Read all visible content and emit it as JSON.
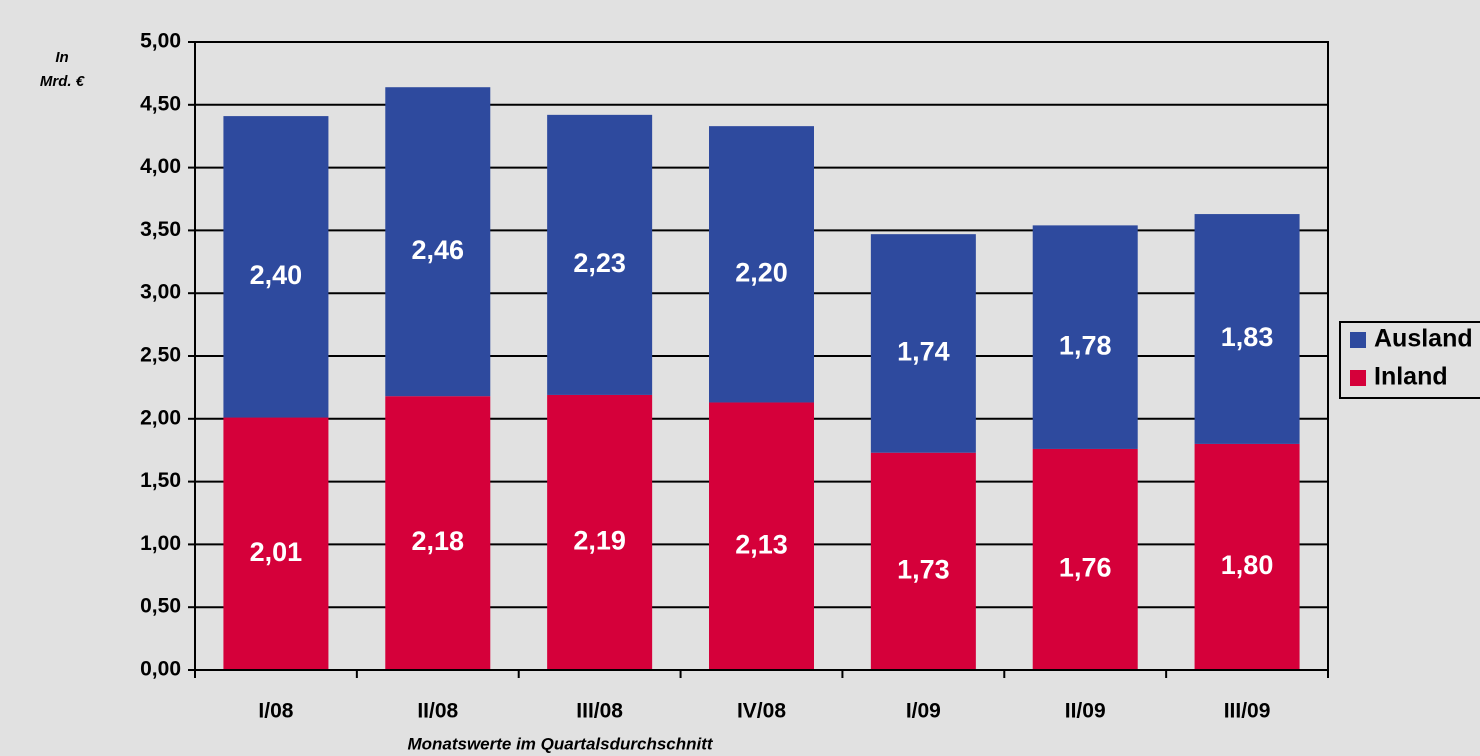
{
  "chart_data": {
    "type": "stacked_bar",
    "y_label": [
      "In",
      "Mrd. €"
    ],
    "x_label": "Monatswerte im Quartalsdurchschnitt",
    "categories": [
      "I/08",
      "II/08",
      "III/08",
      "IV/08",
      "I/09",
      "II/09",
      "III/09"
    ],
    "series": [
      {
        "name": "Inland",
        "color": "#d5003a",
        "values": [
          2.01,
          2.18,
          2.19,
          2.13,
          1.73,
          1.76,
          1.8
        ],
        "value_labels": [
          "2,01",
          "2,18",
          "2,19",
          "2,13",
          "1,73",
          "1,76",
          "1,80"
        ]
      },
      {
        "name": "Ausland",
        "color": "#2e4a9e",
        "values": [
          2.4,
          2.46,
          2.23,
          2.2,
          1.74,
          1.78,
          1.83
        ],
        "value_labels": [
          "2,40",
          "2,46",
          "2,23",
          "2,20",
          "1,74",
          "1,78",
          "1,83"
        ]
      }
    ],
    "ylim": [
      0,
      5
    ],
    "yticks": [
      {
        "value": 0,
        "label": "0,00"
      },
      {
        "value": 0.5,
        "label": "0,50"
      },
      {
        "value": 1,
        "label": "1,00"
      },
      {
        "value": 1.5,
        "label": "1,50"
      },
      {
        "value": 2,
        "label": "2,00"
      },
      {
        "value": 2.5,
        "label": "2,50"
      },
      {
        "value": 3,
        "label": "3,00"
      },
      {
        "value": 3.5,
        "label": "3,50"
      },
      {
        "value": 4,
        "label": "4,00"
      },
      {
        "value": 4.5,
        "label": "4,50"
      },
      {
        "value": 5,
        "label": "5,00"
      }
    ],
    "grid": true,
    "legend": "right"
  }
}
